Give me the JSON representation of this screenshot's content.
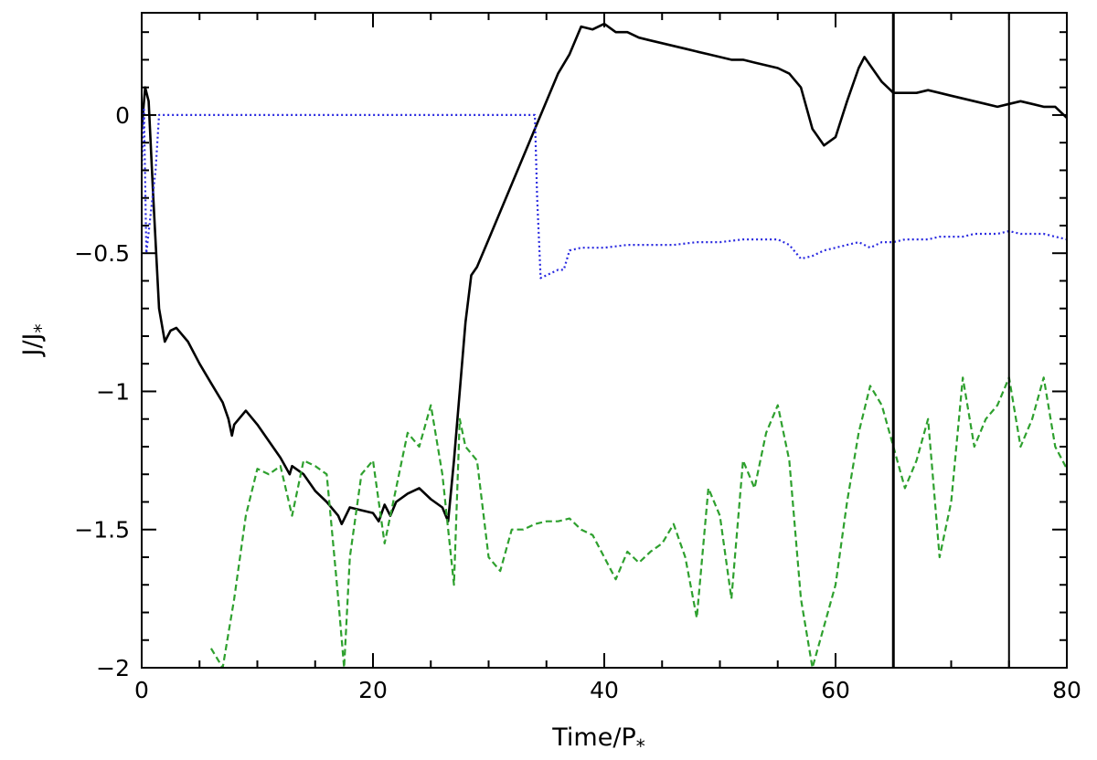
{
  "chart_data": {
    "type": "line",
    "xlabel": "Time/P",
    "xlabel_sub": "*",
    "ylabel": "J/J",
    "ylabel_sub": "*",
    "xlim": [
      0,
      80
    ],
    "ylim": [
      -2,
      0.37
    ],
    "x_ticks": [
      0,
      20,
      40,
      60,
      80
    ],
    "x_tick_labels": [
      "0",
      "20",
      "40",
      "60",
      "80"
    ],
    "y_ticks": [
      -2,
      -1.5,
      -1,
      -0.5,
      0
    ],
    "y_tick_labels": [
      "−2",
      "−1.5",
      "−1",
      "−0.5",
      "0"
    ],
    "grid": false,
    "vertical_lines": [
      {
        "x": 65,
        "color": "#000000"
      },
      {
        "x": 75,
        "color": "#000000"
      }
    ],
    "series": [
      {
        "color": "#000000",
        "style": "solid",
        "x": [
          0,
          0.3,
          0.6,
          1.0,
          1.5,
          2.0,
          2.5,
          3.0,
          4.0,
          5.0,
          6.0,
          7.0,
          7.5,
          7.8,
          8.0,
          9.0,
          10,
          11,
          12,
          12.8,
          13,
          14,
          15,
          16,
          17,
          17.3,
          18,
          19,
          20,
          20.5,
          21,
          21.5,
          22,
          23,
          24,
          25,
          26,
          26.5,
          27,
          27.5,
          28,
          28.5,
          29,
          30,
          31,
          32,
          33,
          34,
          35,
          36,
          37,
          38,
          39,
          40,
          41,
          42,
          43,
          44,
          45,
          46,
          47,
          48,
          49,
          50,
          51,
          52,
          53,
          54,
          55,
          56,
          57,
          58,
          59,
          60,
          61,
          62,
          62.5,
          63,
          64,
          65,
          66,
          67,
          68,
          69,
          70,
          71,
          72,
          73,
          74,
          75,
          76,
          77,
          78,
          79,
          80
        ],
        "y": [
          -0.05,
          0.1,
          0.05,
          -0.3,
          -0.7,
          -0.82,
          -0.78,
          -0.77,
          -0.82,
          -0.9,
          -0.97,
          -1.04,
          -1.1,
          -1.16,
          -1.12,
          -1.07,
          -1.12,
          -1.18,
          -1.24,
          -1.3,
          -1.27,
          -1.3,
          -1.36,
          -1.4,
          -1.45,
          -1.48,
          -1.42,
          -1.43,
          -1.44,
          -1.47,
          -1.41,
          -1.45,
          -1.4,
          -1.37,
          -1.35,
          -1.39,
          -1.42,
          -1.47,
          -1.25,
          -1.0,
          -0.75,
          -0.58,
          -0.55,
          -0.45,
          -0.35,
          -0.25,
          -0.15,
          -0.05,
          0.05,
          0.15,
          0.22,
          0.32,
          0.31,
          0.33,
          0.3,
          0.3,
          0.28,
          0.27,
          0.26,
          0.25,
          0.24,
          0.23,
          0.22,
          0.21,
          0.2,
          0.2,
          0.19,
          0.18,
          0.17,
          0.15,
          0.1,
          -0.05,
          -0.11,
          -0.08,
          0.05,
          0.17,
          0.21,
          0.18,
          0.12,
          0.08,
          0.08,
          0.08,
          0.09,
          0.08,
          0.07,
          0.06,
          0.05,
          0.04,
          0.03,
          0.04,
          0.05,
          0.04,
          0.03,
          0.03,
          -0.01
        ]
      },
      {
        "color": "#2a2ae0",
        "style": "dotted",
        "x": [
          0,
          0.2,
          0.4,
          0.8,
          1.2,
          1.5,
          2,
          10,
          20,
          30,
          34,
          34.2,
          34.5,
          35,
          36,
          36.5,
          37,
          38,
          40,
          42,
          44,
          46,
          48,
          50,
          52,
          54,
          55,
          56,
          57,
          58,
          59,
          60,
          61,
          62,
          63,
          64,
          65,
          66,
          67,
          68,
          69,
          70,
          71,
          72,
          73,
          74,
          75,
          76,
          77,
          78,
          79,
          80
        ],
        "y": [
          -0.2,
          0.02,
          -0.5,
          -0.35,
          -0.2,
          0.0,
          0.0,
          0.0,
          0.0,
          0.0,
          0.0,
          -0.3,
          -0.59,
          -0.58,
          -0.56,
          -0.56,
          -0.49,
          -0.48,
          -0.48,
          -0.47,
          -0.47,
          -0.47,
          -0.46,
          -0.46,
          -0.45,
          -0.45,
          -0.45,
          -0.47,
          -0.52,
          -0.51,
          -0.49,
          -0.48,
          -0.47,
          -0.46,
          -0.48,
          -0.46,
          -0.46,
          -0.45,
          -0.45,
          -0.45,
          -0.44,
          -0.44,
          -0.44,
          -0.43,
          -0.43,
          -0.43,
          -0.42,
          -0.43,
          -0.43,
          -0.43,
          -0.44,
          -0.45
        ]
      },
      {
        "color": "#2ea02e",
        "style": "dashed",
        "x": [
          6,
          7,
          8,
          9,
          10,
          11,
          12,
          13,
          14,
          15,
          16,
          17,
          17.5,
          18,
          19,
          20,
          21,
          22,
          23,
          24,
          25,
          26,
          27,
          27.5,
          28,
          29,
          30,
          31,
          32,
          33,
          34,
          35,
          36,
          37,
          38,
          39,
          40,
          41,
          42,
          43,
          44,
          45,
          46,
          47,
          48,
          49,
          50,
          51,
          52,
          53,
          54,
          55,
          56,
          57,
          58,
          59,
          60,
          61,
          62,
          63,
          64,
          65,
          66,
          67,
          68,
          69,
          70,
          71,
          72,
          73,
          74,
          75,
          76,
          77,
          78,
          79,
          80
        ],
        "y": [
          -1.93,
          -2.0,
          -1.75,
          -1.45,
          -1.28,
          -1.3,
          -1.27,
          -1.45,
          -1.25,
          -1.27,
          -1.3,
          -1.75,
          -2.0,
          -1.6,
          -1.3,
          -1.25,
          -1.55,
          -1.35,
          -1.15,
          -1.2,
          -1.05,
          -1.3,
          -1.7,
          -1.1,
          -1.2,
          -1.25,
          -1.6,
          -1.65,
          -1.5,
          -1.5,
          -1.48,
          -1.47,
          -1.47,
          -1.46,
          -1.5,
          -1.52,
          -1.6,
          -1.68,
          -1.58,
          -1.62,
          -1.58,
          -1.55,
          -1.48,
          -1.6,
          -1.82,
          -1.35,
          -1.45,
          -1.75,
          -1.25,
          -1.35,
          -1.15,
          -1.05,
          -1.25,
          -1.75,
          -2.0,
          -1.85,
          -1.7,
          -1.4,
          -1.15,
          -0.98,
          -1.05,
          -1.2,
          -1.35,
          -1.25,
          -1.1,
          -1.6,
          -1.4,
          -0.95,
          -1.2,
          -1.1,
          -1.05,
          -0.95,
          -1.2,
          -1.1,
          -0.95,
          -1.2,
          -1.28
        ]
      }
    ]
  }
}
